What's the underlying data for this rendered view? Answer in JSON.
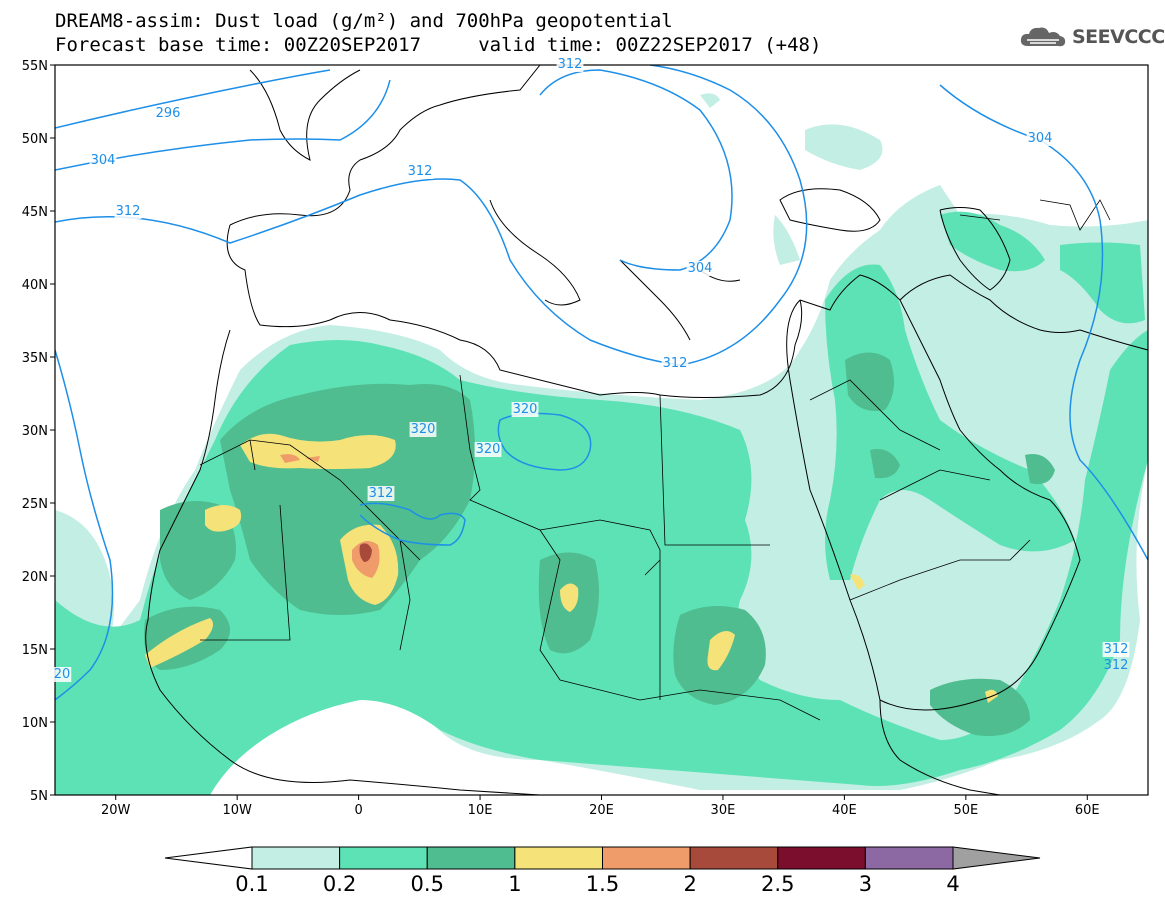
{
  "header": {
    "title_line1": "DREAM8-assim: Dust load (g/m²) and 700hPa geopotential",
    "title_line2": "Forecast base time: 00Z20SEP2017     valid time: 00Z22SEP2017 (+48)"
  },
  "logo": {
    "text": "SEEVCCC",
    "icon": "cloud-icon"
  },
  "map": {
    "lon_range": [
      -25,
      65
    ],
    "lat_range": [
      5,
      55
    ],
    "lat_ticks": [
      "55N",
      "50N",
      "45N",
      "40N",
      "35N",
      "30N",
      "25N",
      "20N",
      "15N",
      "10N",
      "5N"
    ],
    "lon_ticks": [
      "20W",
      "10W",
      "0",
      "10E",
      "20E",
      "30E",
      "40E",
      "50E",
      "60E"
    ],
    "contour_color": "#1e8fe8",
    "contour_labels": [
      "296",
      "304",
      "312",
      "312",
      "312",
      "304",
      "304",
      "312",
      "320",
      "320",
      "320",
      "312",
      "312",
      "20"
    ]
  },
  "colorbar": {
    "labels": [
      "0.1",
      "0.2",
      "0.5",
      "1",
      "1.5",
      "2",
      "2.5",
      "3",
      "4"
    ],
    "colors": [
      "#ffffff",
      "#c2eee3",
      "#5de2b5",
      "#4fbd8f",
      "#f5e37a",
      "#ef9b6a",
      "#a84a3b",
      "#7a0e2c",
      "#8c69a3",
      "#a0a0a0"
    ]
  }
}
